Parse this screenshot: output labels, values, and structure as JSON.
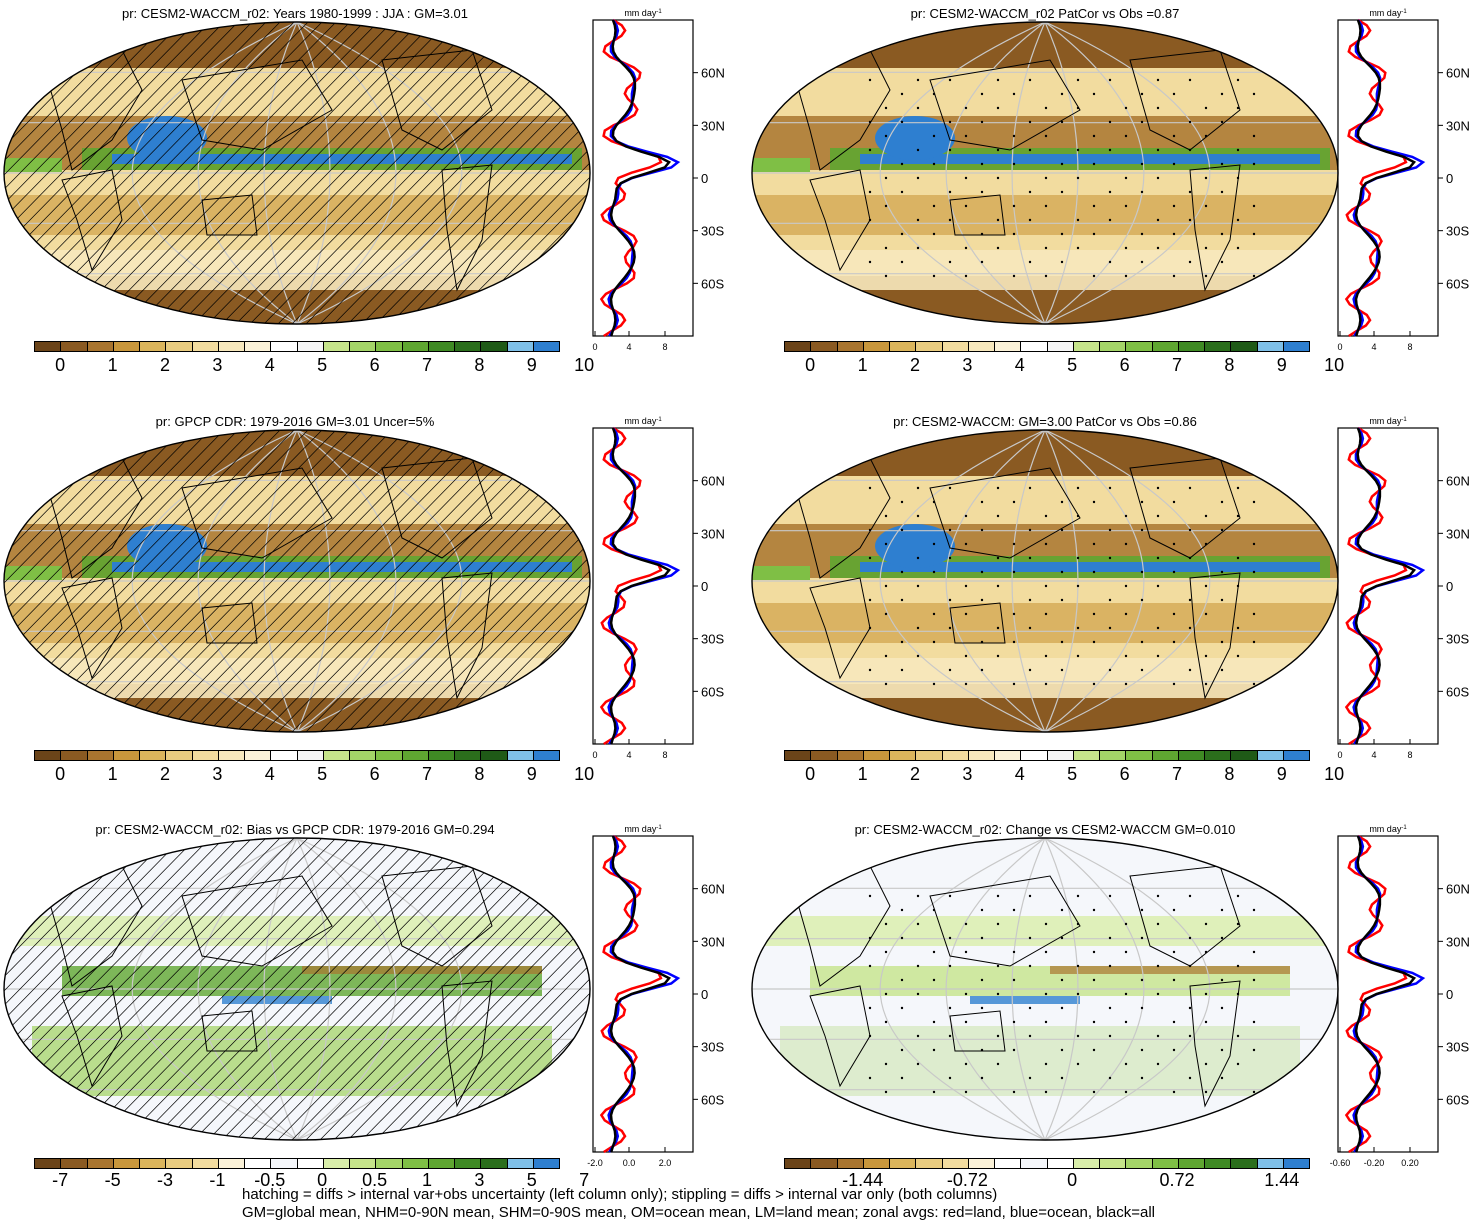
{
  "panels": [
    {
      "id": "p1",
      "title": "pr: CESM2-WACCM_r02: Years 1980-1999 : JJA : GM=3.01",
      "scale": "abs",
      "hatch": "lines",
      "zonal_xlabels": [
        "0",
        "4",
        "8"
      ]
    },
    {
      "id": "p2",
      "title": "pr: CESM2-WACCM_r02 PatCor vs Obs =0.87",
      "scale": "abs",
      "hatch": "dots",
      "zonal_xlabels": [
        "0",
        "4",
        "8"
      ]
    },
    {
      "id": "p3",
      "title": "pr: GPCP CDR: 1979-2016 GM=3.01 Uncer=5%",
      "scale": "abs",
      "hatch": "lines",
      "zonal_xlabels": [
        "0",
        "4",
        "8"
      ]
    },
    {
      "id": "p4",
      "title": "pr: CESM2-WACCM: GM=3.00 PatCor vs Obs =0.86",
      "scale": "abs",
      "hatch": "dots",
      "zonal_xlabels": [
        "0",
        "4",
        "8"
      ]
    },
    {
      "id": "p5",
      "title": "pr: CESM2-WACCM_r02: Bias vs GPCP CDR: 1979-2016 GM=0.294",
      "scale": "bias",
      "hatch": "lines",
      "zonal_xlabels": [
        "-2.0",
        "0.0",
        "2.0"
      ]
    },
    {
      "id": "p6",
      "title": "pr: CESM2-WACCM_r02: Change vs CESM2-WACCM GM=0.010",
      "scale": "change",
      "hatch": "dots",
      "zonal_xlabels": [
        "-0.60",
        "-0.20",
        "0.20"
      ]
    }
  ],
  "zonal": {
    "unit_label": "mm day",
    "unit_exp": "-1",
    "lat_labels": [
      "60N",
      "30N",
      "0",
      "30S",
      "60S"
    ],
    "line_colors": {
      "land": "#ff0000",
      "ocean": "#0000ff",
      "all": "#000000"
    }
  },
  "colorbars": {
    "abs": {
      "labels": [
        "0",
        "1",
        "2",
        "3",
        "4",
        "5",
        "6",
        "7",
        "8",
        "9",
        "10"
      ],
      "colors": [
        "#6b4419",
        "#8a5a22",
        "#a9752f",
        "#c9973c",
        "#dbb55c",
        "#e9cc80",
        "#f2dc9f",
        "#f7e8bd",
        "#fbf2d8",
        "#ffffff",
        "#f5f5f5",
        "#c6e48b",
        "#a4d468",
        "#7fbf45",
        "#5fa631",
        "#3f8a24",
        "#2b6e1c",
        "#1f5a17",
        "#7fc0e8",
        "#2e7fd0"
      ]
    },
    "bias": {
      "labels": [
        "-7",
        "-5",
        "-3",
        "-1",
        "-0.5",
        "0",
        "0.5",
        "1",
        "3",
        "5",
        "7"
      ],
      "colors": [
        "#6b4419",
        "#8a5a22",
        "#a9752f",
        "#c9973c",
        "#dbb55c",
        "#e9cc80",
        "#f2dc9f",
        "#fbf2d8",
        "#ffffff",
        "#f5f7fb",
        "#ffffff",
        "#d9eeaa",
        "#c6e48b",
        "#a4d468",
        "#7fbf45",
        "#5fa631",
        "#3f8a24",
        "#2b6e1c",
        "#7fc0e8",
        "#2e7fd0"
      ]
    },
    "change": {
      "labels": [
        "-1.44",
        "-0.72",
        "0",
        "0.72",
        "1.44"
      ],
      "colors": [
        "#6b4419",
        "#8a5a22",
        "#a9752f",
        "#c9973c",
        "#dbb55c",
        "#e9cc80",
        "#f2dc9f",
        "#fbf2d8",
        "#ffffff",
        "#f5f7fb",
        "#ffffff",
        "#d9eeaa",
        "#c6e48b",
        "#a4d468",
        "#7fbf45",
        "#5fa631",
        "#3f8a24",
        "#2b6e1c",
        "#7fc0e8",
        "#2e7fd0"
      ]
    }
  },
  "footer": {
    "line1": "hatching = diffs > internal var+obs uncertainty (left column only); stippling = diffs > internal var only (both columns)",
    "line2": "GM=global mean, NHM=0-90N mean, SHM=0-90S mean, OM=ocean mean, LM=land mean; zonal avgs: red=land, blue=ocean, black=all"
  }
}
